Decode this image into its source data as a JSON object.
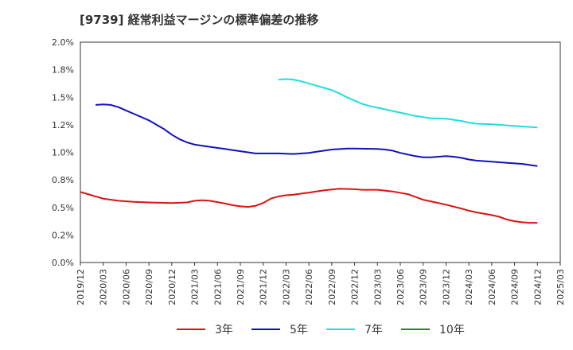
{
  "title": "[9739]  経常利益マージンの標準偏差の推移",
  "chart_data": {
    "type": "line",
    "title": "[9739]  経常利益マージンの標準偏差の推移",
    "ylim": [
      0.0,
      2.0
    ],
    "y_ticks": [
      "0.0%",
      "0.2%",
      "0.5%",
      "0.8%",
      "1.0%",
      "1.2%",
      "1.5%",
      "1.8%",
      "2.0%"
    ],
    "y_tick_values": [
      0.0,
      0.25,
      0.5,
      0.75,
      1.0,
      1.25,
      1.5,
      1.75,
      2.0
    ],
    "x_ticks": [
      "2019/12",
      "2020/03",
      "2020/06",
      "2020/09",
      "2020/12",
      "2021/03",
      "2021/06",
      "2021/09",
      "2021/12",
      "2022/03",
      "2022/06",
      "2022/09",
      "2022/12",
      "2023/03",
      "2023/06",
      "2023/09",
      "2023/12",
      "2024/03",
      "2024/06",
      "2024/09",
      "2024/12",
      "2025/03"
    ],
    "x_tick_months": [
      0,
      3,
      6,
      9,
      12,
      15,
      18,
      21,
      24,
      27,
      30,
      33,
      36,
      39,
      42,
      45,
      48,
      51,
      54,
      57,
      60,
      63
    ],
    "grid": true,
    "legend_position": "bottom",
    "series": [
      {
        "name": "3年",
        "color": "#dd1111",
        "points": [
          [
            "2019/12",
            0.64
          ],
          [
            "2020/01",
            0.62
          ],
          [
            "2020/02",
            0.6
          ],
          [
            "2020/03",
            0.58
          ],
          [
            "2020/05",
            0.56
          ],
          [
            "2020/07",
            0.55
          ],
          [
            "2020/09",
            0.545
          ],
          [
            "2020/12",
            0.54
          ],
          [
            "2021/02",
            0.545
          ],
          [
            "2021/03",
            0.56
          ],
          [
            "2021/04",
            0.565
          ],
          [
            "2021/05",
            0.56
          ],
          [
            "2021/07",
            0.535
          ],
          [
            "2021/08",
            0.52
          ],
          [
            "2021/09",
            0.51
          ],
          [
            "2021/10",
            0.505
          ],
          [
            "2021/11",
            0.515
          ],
          [
            "2021/12",
            0.54
          ],
          [
            "2022/01",
            0.58
          ],
          [
            "2022/02",
            0.6
          ],
          [
            "2022/03",
            0.61
          ],
          [
            "2022/04",
            0.615
          ],
          [
            "2022/05",
            0.625
          ],
          [
            "2022/06",
            0.635
          ],
          [
            "2022/08",
            0.655
          ],
          [
            "2022/10",
            0.67
          ],
          [
            "2022/12",
            0.665
          ],
          [
            "2023/01",
            0.66
          ],
          [
            "2023/03",
            0.66
          ],
          [
            "2023/05",
            0.645
          ],
          [
            "2023/07",
            0.62
          ],
          [
            "2023/08",
            0.595
          ],
          [
            "2023/09",
            0.57
          ],
          [
            "2023/10",
            0.555
          ],
          [
            "2023/12",
            0.525
          ],
          [
            "2024/02",
            0.49
          ],
          [
            "2024/03",
            0.47
          ],
          [
            "2024/04",
            0.455
          ],
          [
            "2024/06",
            0.43
          ],
          [
            "2024/07",
            0.415
          ],
          [
            "2024/08",
            0.39
          ],
          [
            "2024/09",
            0.375
          ],
          [
            "2024/10",
            0.365
          ],
          [
            "2024/11",
            0.36
          ],
          [
            "2024/12",
            0.36
          ]
        ]
      },
      {
        "name": "5年",
        "color": "#1111bb",
        "points": [
          [
            "2020/02",
            1.43
          ],
          [
            "2020/03",
            1.435
          ],
          [
            "2020/04",
            1.43
          ],
          [
            "2020/05",
            1.41
          ],
          [
            "2020/06",
            1.38
          ],
          [
            "2020/07",
            1.35
          ],
          [
            "2020/09",
            1.29
          ],
          [
            "2020/10",
            1.25
          ],
          [
            "2020/11",
            1.21
          ],
          [
            "2020/12",
            1.16
          ],
          [
            "2021/01",
            1.12
          ],
          [
            "2021/02",
            1.09
          ],
          [
            "2021/03",
            1.07
          ],
          [
            "2021/05",
            1.05
          ],
          [
            "2021/07",
            1.03
          ],
          [
            "2021/09",
            1.01
          ],
          [
            "2021/10",
            1.0
          ],
          [
            "2021/11",
            0.99
          ],
          [
            "2022/01",
            0.99
          ],
          [
            "2022/02",
            0.99
          ],
          [
            "2022/04",
            0.985
          ],
          [
            "2022/06",
            0.995
          ],
          [
            "2022/07",
            1.005
          ],
          [
            "2022/09",
            1.025
          ],
          [
            "2022/11",
            1.035
          ],
          [
            "2022/12",
            1.035
          ],
          [
            "2023/03",
            1.03
          ],
          [
            "2023/04",
            1.025
          ],
          [
            "2023/05",
            1.015
          ],
          [
            "2023/06",
            0.995
          ],
          [
            "2023/07",
            0.98
          ],
          [
            "2023/08",
            0.965
          ],
          [
            "2023/09",
            0.955
          ],
          [
            "2023/10",
            0.955
          ],
          [
            "2023/11",
            0.96
          ],
          [
            "2023/12",
            0.965
          ],
          [
            "2024/01",
            0.96
          ],
          [
            "2024/02",
            0.95
          ],
          [
            "2024/03",
            0.935
          ],
          [
            "2024/04",
            0.925
          ],
          [
            "2024/06",
            0.915
          ],
          [
            "2024/08",
            0.905
          ],
          [
            "2024/10",
            0.895
          ],
          [
            "2024/11",
            0.885
          ],
          [
            "2024/12",
            0.875
          ]
        ]
      },
      {
        "name": "7年",
        "color": "#22dddd",
        "points": [
          [
            "2022/02",
            1.66
          ],
          [
            "2022/03",
            1.665
          ],
          [
            "2022/04",
            1.66
          ],
          [
            "2022/05",
            1.645
          ],
          [
            "2022/06",
            1.625
          ],
          [
            "2022/07",
            1.605
          ],
          [
            "2022/08",
            1.585
          ],
          [
            "2022/09",
            1.565
          ],
          [
            "2022/10",
            1.535
          ],
          [
            "2022/11",
            1.5
          ],
          [
            "2022/12",
            1.47
          ],
          [
            "2023/01",
            1.44
          ],
          [
            "2023/02",
            1.42
          ],
          [
            "2023/03",
            1.405
          ],
          [
            "2023/04",
            1.39
          ],
          [
            "2023/05",
            1.375
          ],
          [
            "2023/06",
            1.36
          ],
          [
            "2023/07",
            1.345
          ],
          [
            "2023/08",
            1.33
          ],
          [
            "2023/09",
            1.32
          ],
          [
            "2023/10",
            1.31
          ],
          [
            "2023/12",
            1.305
          ],
          [
            "2024/01",
            1.295
          ],
          [
            "2024/02",
            1.285
          ],
          [
            "2024/03",
            1.27
          ],
          [
            "2024/04",
            1.26
          ],
          [
            "2024/06",
            1.255
          ],
          [
            "2024/08",
            1.245
          ],
          [
            "2024/10",
            1.235
          ],
          [
            "2024/12",
            1.225
          ]
        ]
      },
      {
        "name": "10年",
        "color": "#228822",
        "points": []
      }
    ]
  }
}
